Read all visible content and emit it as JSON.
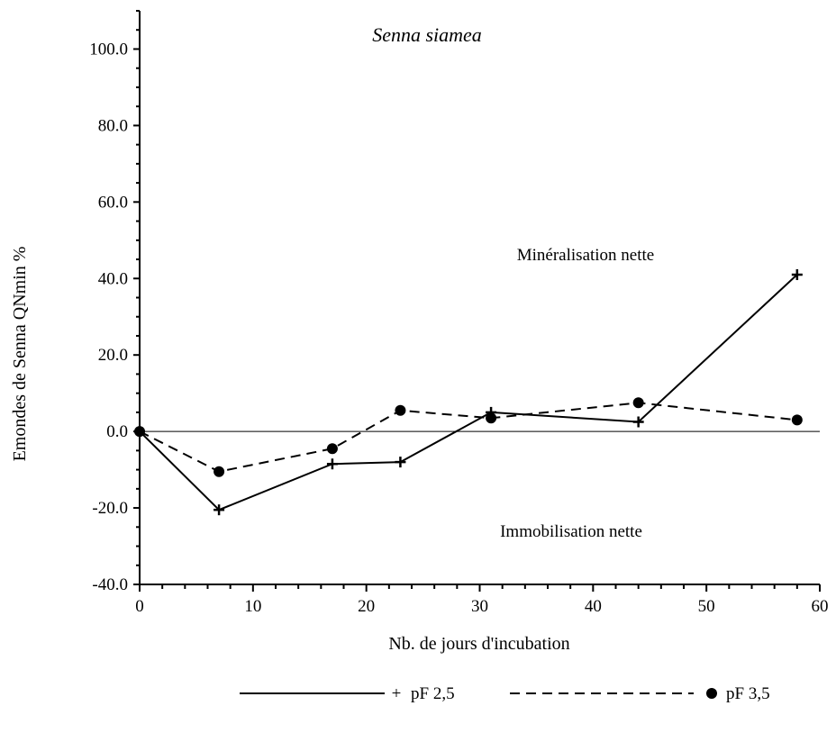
{
  "chart_data": {
    "type": "line",
    "title": "Senna siamea",
    "xlabel": "Nb. de jours d'incubation",
    "ylabel": "Emondes de Senna QNmin %",
    "xlim": [
      0,
      60
    ],
    "ylim": [
      -40,
      110
    ],
    "x_ticks": [
      "0",
      "10",
      "20",
      "30",
      "40",
      "50",
      "60"
    ],
    "y_ticks": [
      "-40.0",
      "-20.0",
      "0.0",
      "20.0",
      "40.0",
      "60.0",
      "80.0",
      "100.0"
    ],
    "annotations": [
      "Minéralisation nette",
      "Immobilisation nette"
    ],
    "legend_position": "bottom",
    "series": [
      {
        "name": "pF 2,5",
        "line_style": "solid",
        "marker": "plus",
        "x": [
          0,
          7,
          17,
          23,
          31,
          44,
          58
        ],
        "y": [
          0,
          -20.5,
          -8.5,
          -8,
          5,
          2.5,
          41
        ]
      },
      {
        "name": "pF 3,5",
        "line_style": "dashed",
        "marker": "circle",
        "x": [
          0,
          7,
          17,
          23,
          31,
          44,
          58
        ],
        "y": [
          0,
          -10.5,
          -4.5,
          5.5,
          3.5,
          7.5,
          3
        ]
      }
    ]
  },
  "legend": {
    "item1_marker": "+",
    "item1_label": "pF 2,5",
    "item2_label": "pF 3,5"
  }
}
